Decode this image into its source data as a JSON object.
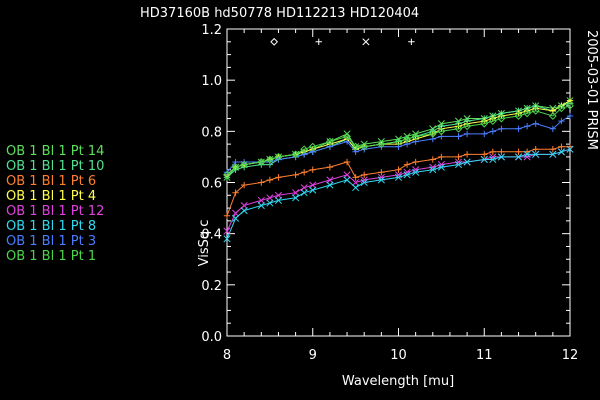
{
  "chart_data": {
    "type": "line",
    "title": "HD37160B hd50778   HD112213 HD120404",
    "side_label": "2005-03-01 PRISM",
    "xlabel": "Wavelength [mu]",
    "ylabel": "VisSq c",
    "xlim": [
      8,
      12
    ],
    "ylim": [
      0,
      1.2
    ],
    "x_ticks": [
      8,
      9,
      10,
      11,
      12
    ],
    "y_ticks": [
      0.0,
      0.2,
      0.4,
      0.6,
      0.8,
      1.0,
      1.2
    ],
    "x_tick_labels": [
      "8",
      "9",
      "10",
      "11",
      "12"
    ],
    "y_tick_labels": [
      "0.0",
      "0.2",
      "0.4",
      "0.6",
      "0.8",
      "1.0",
      "1.2"
    ],
    "grid": false,
    "legend_position": "left",
    "axis_color": "#ffffff",
    "background": "#000000",
    "x": [
      8.0,
      8.1,
      8.2,
      8.4,
      8.5,
      8.6,
      8.8,
      8.9,
      9.0,
      9.2,
      9.4,
      9.5,
      9.6,
      9.8,
      10.0,
      10.1,
      10.2,
      10.4,
      10.5,
      10.7,
      10.8,
      11.0,
      11.1,
      11.2,
      11.4,
      11.5,
      11.6,
      11.8,
      11.9,
      12.0
    ],
    "series": [
      {
        "name": "OB 1 Bl 1 Pt 14",
        "color": "#5ce05c",
        "marker": "cross",
        "values": [
          0.62,
          0.66,
          0.67,
          0.68,
          0.69,
          0.7,
          0.71,
          0.72,
          0.73,
          0.76,
          0.79,
          0.74,
          0.75,
          0.76,
          0.77,
          0.78,
          0.79,
          0.81,
          0.83,
          0.84,
          0.85,
          0.85,
          0.86,
          0.87,
          0.88,
          0.89,
          0.9,
          0.89,
          0.9,
          0.92
        ]
      },
      {
        "name": "OB 1 Bl 1 Pt 10",
        "color": "#50e090",
        "marker": "plus",
        "values": [
          0.62,
          0.65,
          0.66,
          0.67,
          0.67,
          0.69,
          0.7,
          0.71,
          0.72,
          0.74,
          0.77,
          0.73,
          0.74,
          0.75,
          0.76,
          0.77,
          0.78,
          0.8,
          0.82,
          0.83,
          0.84,
          0.85,
          0.86,
          0.87,
          0.88,
          0.89,
          0.9,
          0.88,
          0.9,
          0.91
        ]
      },
      {
        "name": "OB 1 Bl 1 Pt 6",
        "color": "#ff7f30",
        "marker": "plus",
        "values": [
          0.47,
          0.56,
          0.59,
          0.6,
          0.61,
          0.62,
          0.63,
          0.64,
          0.65,
          0.66,
          0.68,
          0.62,
          0.63,
          0.64,
          0.65,
          0.67,
          0.68,
          0.69,
          0.7,
          0.7,
          0.71,
          0.71,
          0.72,
          0.72,
          0.72,
          0.72,
          0.73,
          0.73,
          0.74,
          0.74
        ]
      },
      {
        "name": "OB 1 Bl 1 Pt 4",
        "color": "#ffff4c",
        "marker": "plus",
        "values": [
          0.63,
          0.66,
          0.67,
          0.68,
          0.69,
          0.7,
          0.71,
          0.72,
          0.73,
          0.75,
          0.77,
          0.73,
          0.74,
          0.75,
          0.75,
          0.76,
          0.77,
          0.79,
          0.81,
          0.82,
          0.83,
          0.84,
          0.85,
          0.86,
          0.87,
          0.88,
          0.89,
          0.88,
          0.9,
          0.92
        ]
      },
      {
        "name": "OB 1 Bl 1 Pt 12",
        "color": "#e040e0",
        "marker": "cross",
        "values": [
          0.41,
          0.48,
          0.51,
          0.53,
          0.54,
          0.55,
          0.56,
          0.58,
          0.59,
          0.61,
          0.63,
          0.6,
          0.61,
          0.62,
          0.63,
          0.64,
          0.65,
          0.66,
          0.67,
          0.68,
          0.68,
          0.69,
          0.7,
          0.7,
          0.7,
          0.7,
          0.71,
          0.71,
          0.72,
          0.73
        ]
      },
      {
        "name": "OB 1 Bl 1 Pt 8",
        "color": "#30d8f0",
        "marker": "cross",
        "values": [
          0.38,
          0.46,
          0.49,
          0.51,
          0.52,
          0.53,
          0.54,
          0.56,
          0.57,
          0.59,
          0.61,
          0.58,
          0.6,
          0.61,
          0.62,
          0.63,
          0.64,
          0.65,
          0.66,
          0.67,
          0.68,
          0.69,
          0.69,
          0.7,
          0.7,
          0.71,
          0.71,
          0.71,
          0.72,
          0.73
        ]
      },
      {
        "name": "OB 1 Bl 1 Pt 3",
        "color": "#4a7dff",
        "marker": "plus",
        "values": [
          0.64,
          0.68,
          0.68,
          0.68,
          0.68,
          0.69,
          0.7,
          0.71,
          0.72,
          0.74,
          0.76,
          0.72,
          0.73,
          0.74,
          0.74,
          0.75,
          0.76,
          0.77,
          0.78,
          0.78,
          0.79,
          0.79,
          0.8,
          0.81,
          0.81,
          0.82,
          0.83,
          0.81,
          0.84,
          0.86
        ]
      },
      {
        "name": "OB 1 Bl 1 Pt 1",
        "color": "#4cd44c",
        "marker": "diamond",
        "values": [
          0.63,
          0.66,
          0.67,
          0.68,
          0.69,
          0.7,
          0.71,
          0.73,
          0.74,
          0.76,
          0.78,
          0.74,
          0.74,
          0.75,
          0.76,
          0.77,
          0.78,
          0.79,
          0.8,
          0.81,
          0.82,
          0.83,
          0.84,
          0.85,
          0.86,
          0.87,
          0.88,
          0.86,
          0.89,
          0.9
        ]
      }
    ],
    "target_markers": [
      {
        "symbol": "diamond",
        "x": 8.55,
        "y": 1.15
      },
      {
        "symbol": "plus",
        "x": 9.07,
        "y": 1.15
      },
      {
        "symbol": "cross",
        "x": 9.62,
        "y": 1.15
      },
      {
        "symbol": "plus",
        "x": 10.15,
        "y": 1.15
      }
    ]
  }
}
